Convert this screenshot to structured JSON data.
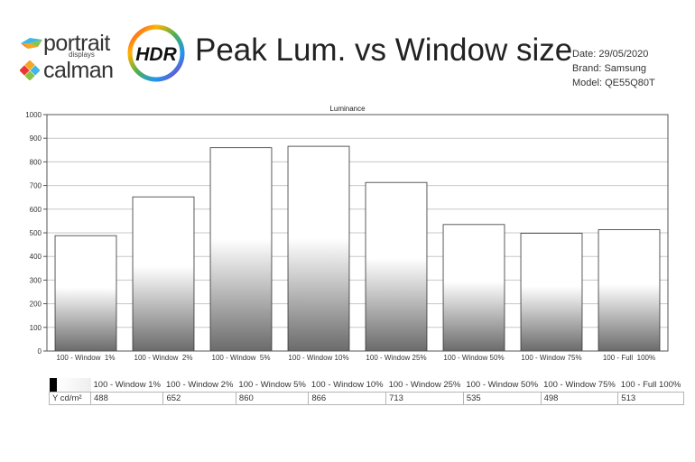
{
  "header": {
    "brand_portrait": "portrait",
    "brand_portrait_sub": "displays",
    "brand_calman": "calman",
    "badge_text": "HDR",
    "title": "Peak Lum. vs Window size",
    "date": "Date: 29/05/2020",
    "brand": "Brand: Samsung",
    "model": "Model: QE55Q80T"
  },
  "chart_data": {
    "type": "bar",
    "title": "Luminance",
    "categories": [
      "100 - Window  1%",
      "100 - Window  2%",
      "100 - Window  5%",
      "100 - Window 10%",
      "100 - Window 25%",
      "100 - Window 50%",
      "100 - Window 75%",
      "100 - Full  100%"
    ],
    "series": [
      {
        "values": [
          488,
          652,
          860,
          866,
          713,
          535,
          498,
          513
        ]
      }
    ],
    "xlabel": "",
    "ylabel": "",
    "ylim": [
      0,
      1000
    ],
    "yticks": [
      0,
      100,
      200,
      300,
      400,
      500,
      600,
      700,
      800,
      900,
      1000
    ],
    "grid": true,
    "legend": "none"
  },
  "table": {
    "row_label": "Y cd/m²",
    "columns": [
      "100 - Window  1%",
      "100 - Window  2%",
      "100 - Window  5%",
      "100 - Window 10%",
      "100 - Window 25%",
      "100 - Window 50%",
      "100 - Window 75%",
      "100 - Full  100%"
    ],
    "values": [
      "488",
      "652",
      "860",
      "866",
      "713",
      "535",
      "498",
      "513"
    ]
  },
  "colors": {
    "bar_top": "#ffffff",
    "bar_bottom": "#6b6b6b",
    "grid": "#c8c8c8",
    "axis": "#555555",
    "title_text": "#222222"
  }
}
